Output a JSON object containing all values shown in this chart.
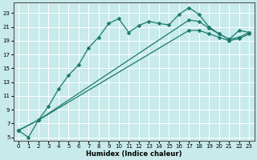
{
  "xlabel": "Humidex (Indice chaleur)",
  "bg_color": "#c8eaea",
  "grid_color": "#ffffff",
  "line_color": "#1a7a6a",
  "xlim": [
    -0.5,
    23.5
  ],
  "ylim": [
    4.5,
    24.5
  ],
  "yticks": [
    5,
    7,
    9,
    11,
    13,
    15,
    17,
    19,
    21,
    23
  ],
  "xticks": [
    0,
    1,
    2,
    3,
    4,
    5,
    6,
    7,
    8,
    9,
    10,
    11,
    12,
    13,
    14,
    15,
    16,
    17,
    18,
    19,
    20,
    21,
    22,
    23
  ],
  "line1_x": [
    0,
    1,
    2,
    3,
    4,
    5,
    6,
    7,
    8,
    9,
    10,
    11,
    12,
    13,
    14,
    15,
    16,
    17,
    18,
    19,
    20,
    21,
    22,
    23
  ],
  "line1_y": [
    6.0,
    5.0,
    7.5,
    9.5,
    12.0,
    14.0,
    15.5,
    18.0,
    19.5,
    21.5,
    22.2,
    20.2,
    21.2,
    21.8,
    21.5,
    21.3,
    22.8,
    23.8,
    22.8,
    21.0,
    20.0,
    19.2,
    20.5,
    20.2
  ],
  "line2_x": [
    0,
    2,
    17,
    18,
    19,
    20,
    21,
    22,
    23
  ],
  "line2_y": [
    6.0,
    7.5,
    22.0,
    21.8,
    20.8,
    20.0,
    19.2,
    19.5,
    20.2
  ],
  "line3_x": [
    0,
    2,
    17,
    18,
    19,
    20,
    21,
    22,
    23
  ],
  "line3_y": [
    6.0,
    7.5,
    20.5,
    20.5,
    20.0,
    19.5,
    19.0,
    19.3,
    20.0
  ]
}
